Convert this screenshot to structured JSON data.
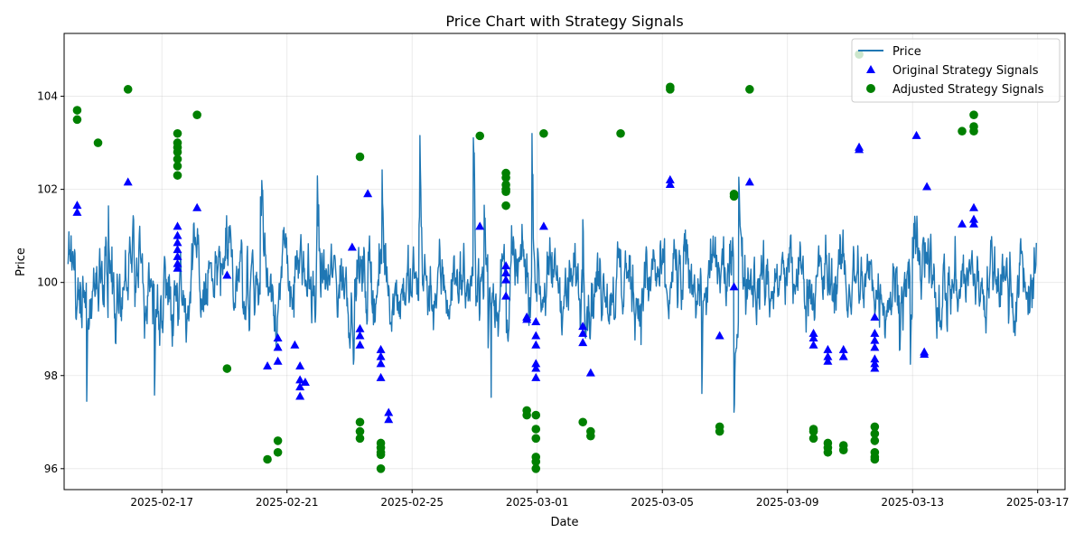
{
  "chart_data": {
    "type": "scatter",
    "title": "Price Chart with Strategy Signals",
    "xlabel": "Date",
    "ylabel": "Price",
    "xlim": [
      "2025-02-13T21:00",
      "2025-03-17T21:00"
    ],
    "ylim": [
      95.55,
      105.35
    ],
    "x_ticks": [
      "2025-02-17",
      "2025-02-21",
      "2025-02-25",
      "2025-03-01",
      "2025-03-05",
      "2025-03-09",
      "2025-03-13",
      "2025-03-17"
    ],
    "y_ticks": [
      96,
      98,
      100,
      102,
      104
    ],
    "grid": true,
    "legend_position": "top-right",
    "series": [
      {
        "name": "Price",
        "kind": "line",
        "color": "#1f77b4",
        "x_start": "2025-02-14T00:00",
        "x_end": "2025-03-16T23:00",
        "mean": 100.0,
        "range": [
          96.3,
          103.2
        ]
      },
      {
        "name": "Original Strategy Signals",
        "kind": "marker",
        "marker": "triangle",
        "color": "#0000ff",
        "points": [
          [
            "2025-02-14T07:00",
            101.65
          ],
          [
            "2025-02-14T07:00",
            101.5
          ],
          [
            "2025-02-15T22:00",
            102.15
          ],
          [
            "2025-02-17T12:00",
            101.2
          ],
          [
            "2025-02-17T12:00",
            101.0
          ],
          [
            "2025-02-17T12:00",
            100.85
          ],
          [
            "2025-02-17T12:00",
            100.7
          ],
          [
            "2025-02-17T12:00",
            100.55
          ],
          [
            "2025-02-17T12:00",
            100.4
          ],
          [
            "2025-02-17T12:00",
            100.3
          ],
          [
            "2025-02-18T03:00",
            101.6
          ],
          [
            "2025-02-19T02:00",
            100.15
          ],
          [
            "2025-02-20T09:00",
            98.2
          ],
          [
            "2025-02-20T17:00",
            98.8
          ],
          [
            "2025-02-20T17:00",
            98.6
          ],
          [
            "2025-02-20T17:00",
            98.3
          ],
          [
            "2025-02-21T06:00",
            98.65
          ],
          [
            "2025-02-21T10:00",
            98.2
          ],
          [
            "2025-02-21T10:00",
            97.9
          ],
          [
            "2025-02-21T10:00",
            97.75
          ],
          [
            "2025-02-21T10:00",
            97.55
          ],
          [
            "2025-02-21T14:00",
            97.85
          ],
          [
            "2025-02-23T02:00",
            100.75
          ],
          [
            "2025-02-23T08:00",
            99.0
          ],
          [
            "2025-02-23T08:00",
            98.85
          ],
          [
            "2025-02-23T08:00",
            98.65
          ],
          [
            "2025-02-23T14:00",
            101.9
          ],
          [
            "2025-02-24T00:00",
            98.55
          ],
          [
            "2025-02-24T00:00",
            98.4
          ],
          [
            "2025-02-24T00:00",
            98.25
          ],
          [
            "2025-02-24T00:00",
            97.95
          ],
          [
            "2025-02-24T06:00",
            97.2
          ],
          [
            "2025-02-24T06:00",
            97.05
          ],
          [
            "2025-02-27T04:00",
            101.2
          ],
          [
            "2025-02-28T00:00",
            100.35
          ],
          [
            "2025-02-28T00:00",
            100.2
          ],
          [
            "2025-02-28T00:00",
            100.05
          ],
          [
            "2025-02-28T00:00",
            99.7
          ],
          [
            "2025-02-28T16:00",
            99.25
          ],
          [
            "2025-02-28T16:00",
            99.2
          ],
          [
            "2025-02-28T23:00",
            99.15
          ],
          [
            "2025-02-28T23:00",
            98.85
          ],
          [
            "2025-02-28T23:00",
            98.65
          ],
          [
            "2025-02-28T23:00",
            98.25
          ],
          [
            "2025-02-28T23:00",
            98.15
          ],
          [
            "2025-02-28T23:00",
            97.95
          ],
          [
            "2025-03-01T05:00",
            101.2
          ],
          [
            "2025-03-02T11:00",
            99.05
          ],
          [
            "2025-03-02T11:00",
            98.9
          ],
          [
            "2025-03-02T11:00",
            98.7
          ],
          [
            "2025-03-02T17:00",
            98.05
          ],
          [
            "2025-03-05T06:00",
            102.2
          ],
          [
            "2025-03-05T06:00",
            102.1
          ],
          [
            "2025-03-06T20:00",
            98.85
          ],
          [
            "2025-03-07T07:00",
            99.9
          ],
          [
            "2025-03-07T19:00",
            102.15
          ],
          [
            "2025-03-09T20:00",
            98.9
          ],
          [
            "2025-03-09T20:00",
            98.8
          ],
          [
            "2025-03-09T20:00",
            98.65
          ],
          [
            "2025-03-10T07:00",
            98.55
          ],
          [
            "2025-03-10T07:00",
            98.4
          ],
          [
            "2025-03-10T07:00",
            98.3
          ],
          [
            "2025-03-10T19:00",
            98.55
          ],
          [
            "2025-03-10T19:00",
            98.4
          ],
          [
            "2025-03-11T07:00",
            102.9
          ],
          [
            "2025-03-11T07:00",
            102.85
          ],
          [
            "2025-03-11T19:00",
            99.25
          ],
          [
            "2025-03-11T19:00",
            98.9
          ],
          [
            "2025-03-11T19:00",
            98.75
          ],
          [
            "2025-03-11T19:00",
            98.6
          ],
          [
            "2025-03-11T19:00",
            98.35
          ],
          [
            "2025-03-11T19:00",
            98.25
          ],
          [
            "2025-03-11T19:00",
            98.15
          ],
          [
            "2025-03-13T03:00",
            103.15
          ],
          [
            "2025-03-13T09:00",
            98.5
          ],
          [
            "2025-03-13T09:00",
            98.45
          ],
          [
            "2025-03-13T11:00",
            102.05
          ],
          [
            "2025-03-14T14:00",
            101.25
          ],
          [
            "2025-03-14T23:00",
            101.6
          ],
          [
            "2025-03-14T23:00",
            101.35
          ],
          [
            "2025-03-14T23:00",
            101.25
          ]
        ]
      },
      {
        "name": "Adjusted Strategy Signals",
        "kind": "marker",
        "marker": "circle",
        "color": "#008000",
        "points": [
          [
            "2025-02-14T07:00",
            103.7
          ],
          [
            "2025-02-14T07:00",
            103.5
          ],
          [
            "2025-02-14T23:00",
            103.0
          ],
          [
            "2025-02-15T22:00",
            104.15
          ],
          [
            "2025-02-17T12:00",
            103.2
          ],
          [
            "2025-02-17T12:00",
            103.0
          ],
          [
            "2025-02-17T12:00",
            102.9
          ],
          [
            "2025-02-17T12:00",
            102.8
          ],
          [
            "2025-02-17T12:00",
            102.65
          ],
          [
            "2025-02-17T12:00",
            102.5
          ],
          [
            "2025-02-17T12:00",
            102.3
          ],
          [
            "2025-02-18T03:00",
            103.6
          ],
          [
            "2025-02-19T02:00",
            98.15
          ],
          [
            "2025-02-20T09:00",
            96.2
          ],
          [
            "2025-02-20T17:00",
            96.6
          ],
          [
            "2025-02-20T17:00",
            96.35
          ],
          [
            "2025-02-23T08:00",
            102.7
          ],
          [
            "2025-02-23T08:00",
            97.0
          ],
          [
            "2025-02-23T08:00",
            96.8
          ],
          [
            "2025-02-23T08:00",
            96.65
          ],
          [
            "2025-02-24T00:00",
            96.55
          ],
          [
            "2025-02-24T00:00",
            96.45
          ],
          [
            "2025-02-24T00:00",
            96.35
          ],
          [
            "2025-02-24T00:00",
            96.3
          ],
          [
            "2025-02-24T00:00",
            96.0
          ],
          [
            "2025-02-27T04:00",
            103.15
          ],
          [
            "2025-02-28T00:00",
            102.35
          ],
          [
            "2025-02-28T00:00",
            102.25
          ],
          [
            "2025-02-28T00:00",
            102.1
          ],
          [
            "2025-02-28T00:00",
            102.0
          ],
          [
            "2025-02-28T00:00",
            101.95
          ],
          [
            "2025-02-28T00:00",
            101.65
          ],
          [
            "2025-02-28T16:00",
            97.25
          ],
          [
            "2025-02-28T16:00",
            97.15
          ],
          [
            "2025-02-28T23:00",
            97.15
          ],
          [
            "2025-02-28T23:00",
            96.85
          ],
          [
            "2025-02-28T23:00",
            96.65
          ],
          [
            "2025-02-28T23:00",
            96.25
          ],
          [
            "2025-02-28T23:00",
            96.15
          ],
          [
            "2025-02-28T23:00",
            96.0
          ],
          [
            "2025-03-01T05:00",
            103.2
          ],
          [
            "2025-03-02T11:00",
            97.0
          ],
          [
            "2025-03-02T17:00",
            96.8
          ],
          [
            "2025-03-02T17:00",
            96.7
          ],
          [
            "2025-03-03T16:00",
            103.2
          ],
          [
            "2025-03-05T06:00",
            104.2
          ],
          [
            "2025-03-05T06:00",
            104.15
          ],
          [
            "2025-03-06T20:00",
            96.9
          ],
          [
            "2025-03-06T20:00",
            96.8
          ],
          [
            "2025-03-07T07:00",
            101.9
          ],
          [
            "2025-03-07T07:00",
            101.85
          ],
          [
            "2025-03-07T19:00",
            104.15
          ],
          [
            "2025-03-09T20:00",
            96.85
          ],
          [
            "2025-03-09T20:00",
            96.8
          ],
          [
            "2025-03-09T20:00",
            96.65
          ],
          [
            "2025-03-10T07:00",
            96.55
          ],
          [
            "2025-03-10T07:00",
            96.45
          ],
          [
            "2025-03-10T07:00",
            96.35
          ],
          [
            "2025-03-10T19:00",
            96.5
          ],
          [
            "2025-03-10T19:00",
            96.4
          ],
          [
            "2025-03-11T07:00",
            104.9
          ],
          [
            "2025-03-11T19:00",
            96.9
          ],
          [
            "2025-03-11T19:00",
            96.75
          ],
          [
            "2025-03-11T19:00",
            96.6
          ],
          [
            "2025-03-11T19:00",
            96.35
          ],
          [
            "2025-03-11T19:00",
            96.25
          ],
          [
            "2025-03-11T19:00",
            96.2
          ],
          [
            "2025-03-14T14:00",
            103.25
          ],
          [
            "2025-03-14T23:00",
            103.6
          ],
          [
            "2025-03-14T23:00",
            103.35
          ],
          [
            "2025-03-14T23:00",
            103.25
          ]
        ]
      }
    ]
  }
}
